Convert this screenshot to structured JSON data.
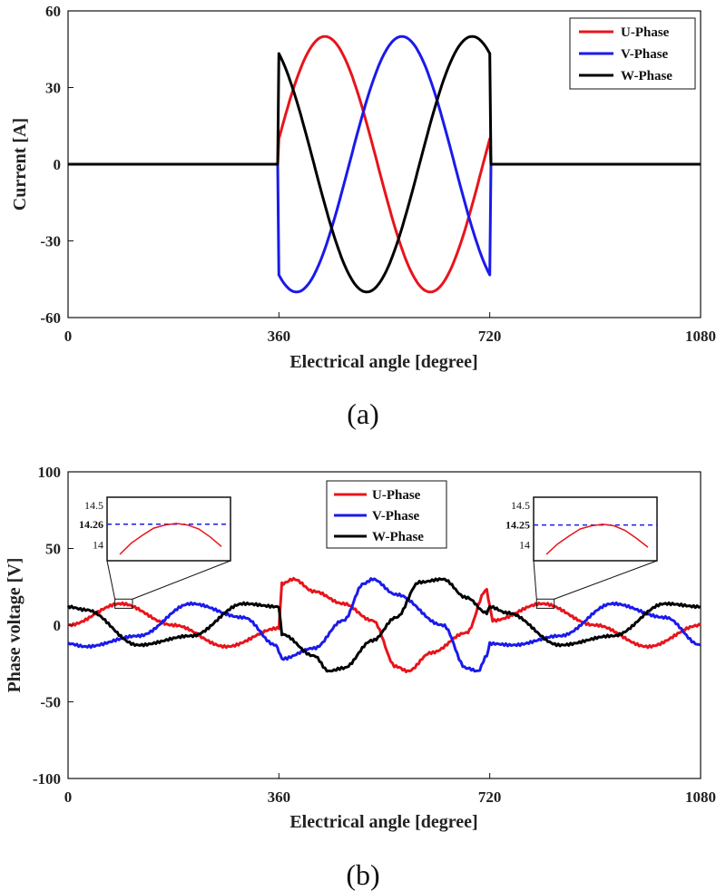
{
  "chart_data": [
    {
      "id": "a",
      "type": "line",
      "caption": "(a)",
      "xlabel": "Electrical angle [degree]",
      "ylabel": "Current [A]",
      "xlim": [
        0,
        1080
      ],
      "ylim": [
        -60,
        60
      ],
      "xticks": [
        0,
        360,
        720,
        1080
      ],
      "yticks": [
        -60,
        -30,
        0,
        30,
        60
      ],
      "grid": false,
      "legend_position": "top-right",
      "model": "sinusoid gated between 360 and 720 degrees, amplitude 50 A",
      "series": [
        {
          "name": "U-Phase",
          "color": "#e8141b",
          "amplitude": 50,
          "phase_deg": 0,
          "x": [
            0,
            359,
            360,
            420,
            450,
            480,
            540,
            570,
            600,
            660,
            690,
            719,
            720,
            1080
          ],
          "y": [
            0,
            0,
            0,
            43.3,
            50,
            43.3,
            0,
            -25,
            -43.3,
            -43.3,
            -25,
            0,
            0,
            0
          ]
        },
        {
          "name": "V-Phase",
          "color": "#1a1aeb",
          "amplitude": 50,
          "phase_deg": -120,
          "x": [
            0,
            359,
            360,
            390,
            420,
            480,
            540,
            570,
            600,
            660,
            690,
            719,
            720,
            1080
          ],
          "y": [
            0,
            0,
            -43.3,
            -50,
            -43.3,
            0,
            43.3,
            50,
            43.3,
            0,
            -25,
            -43.3,
            0,
            0
          ]
        },
        {
          "name": "W-Phase",
          "color": "#000000",
          "amplitude": 50,
          "phase_deg": 120,
          "x": [
            0,
            359,
            360,
            420,
            450,
            480,
            540,
            600,
            660,
            690,
            719,
            720,
            1080
          ],
          "y": [
            0,
            0,
            43.3,
            0,
            -25,
            -43.3,
            -43.3,
            0,
            43.3,
            50,
            43.3,
            0,
            0
          ]
        }
      ]
    },
    {
      "id": "b",
      "type": "line",
      "caption": "(b)",
      "xlabel": "Electrical angle [degree]",
      "ylabel": "Phase voltage [V]",
      "xlim": [
        0,
        1080
      ],
      "ylim": [
        -100,
        100
      ],
      "xticks": [
        0,
        360,
        720,
        1080
      ],
      "yticks": [
        -100,
        -50,
        0,
        50,
        100
      ],
      "grid": false,
      "legend_position": "top-center",
      "model": "open-phase back-EMF amplitude 14 V outside 360-720, excited-phase distortion with peaks near 30 V inside 360-720",
      "series": [
        {
          "name": "U-Phase",
          "color": "#e8141b",
          "x": [
            0,
            90,
            180,
            270,
            360,
            365,
            385,
            420,
            470,
            520,
            560,
            580,
            620,
            680,
            715,
            720,
            725,
            810,
            900,
            990,
            1080
          ],
          "y": [
            0,
            14,
            0,
            -14,
            -2,
            27,
            30,
            22,
            14,
            3,
            -27,
            -30,
            -18,
            -5,
            23,
            12,
            3,
            14,
            0,
            -14,
            0
          ]
        },
        {
          "name": "V-Phase",
          "color": "#1a1aeb",
          "x": [
            0,
            30,
            120,
            210,
            300,
            355,
            360,
            365,
            420,
            470,
            505,
            520,
            560,
            640,
            680,
            700,
            715,
            720,
            760,
            840,
            930,
            1020,
            1080
          ],
          "y": [
            -12,
            -14,
            -7,
            14,
            5,
            -13,
            -17,
            -22,
            -15,
            3,
            27,
            30,
            20,
            0,
            -28,
            -30,
            -20,
            -12,
            -13,
            -7,
            14,
            5,
            -13
          ]
        },
        {
          "name": "W-Phase",
          "color": "#000000",
          "x": [
            0,
            30,
            120,
            210,
            300,
            360,
            365,
            420,
            445,
            470,
            520,
            560,
            600,
            640,
            680,
            715,
            720,
            750,
            840,
            930,
            1020,
            1080
          ],
          "y": [
            12,
            10,
            -13,
            -7,
            14,
            12,
            -6,
            -20,
            -30,
            -28,
            -10,
            5,
            28,
            30,
            18,
            8,
            12,
            8,
            -13,
            -7,
            14,
            12
          ]
        }
      ],
      "insets": [
        {
          "label": "14.26",
          "ylim": [
            13.8,
            14.6
          ],
          "yticks": [
            "14.5",
            "14.26",
            "14"
          ],
          "reference": 14.26,
          "zoom_x_range": [
            80,
            110
          ],
          "curve_y": [
            13.88,
            14.02,
            14.12,
            14.21,
            14.25,
            14.27,
            14.25,
            14.2,
            14.1,
            13.98
          ]
        },
        {
          "label": "14.25",
          "ylim": [
            13.8,
            14.6
          ],
          "yticks": [
            "14.5",
            "14.25",
            "14"
          ],
          "reference": 14.25,
          "zoom_x_range": [
            800,
            830
          ],
          "curve_y": [
            13.88,
            14.01,
            14.11,
            14.2,
            14.24,
            14.26,
            14.24,
            14.18,
            14.08,
            13.97
          ]
        }
      ]
    }
  ]
}
